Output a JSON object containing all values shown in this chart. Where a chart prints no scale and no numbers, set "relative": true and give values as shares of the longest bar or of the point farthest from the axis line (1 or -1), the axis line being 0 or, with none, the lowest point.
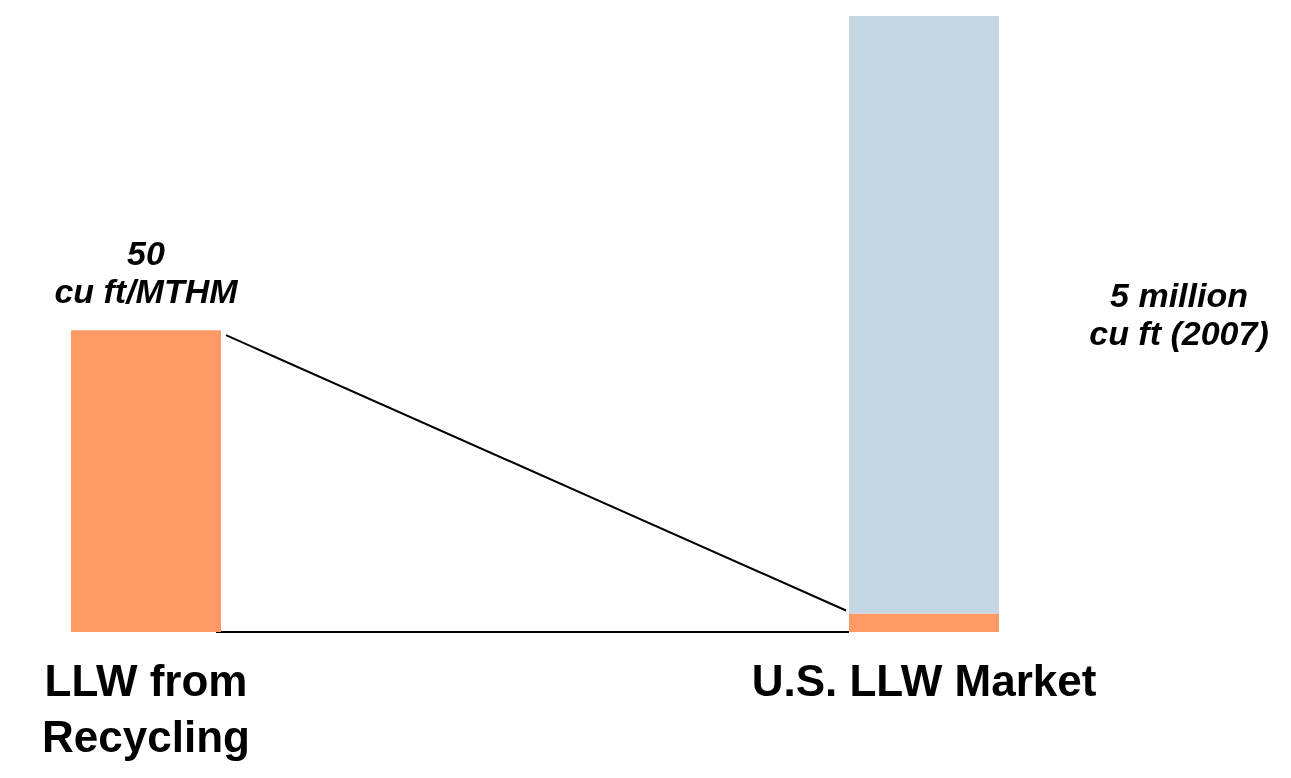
{
  "chart_data": {
    "type": "bar",
    "relative": true,
    "stacked": true,
    "categories": [
      "LLW from\nRecycling",
      "U.S. LLW Market"
    ],
    "series": [
      {
        "color": "#fd9a68",
        "values": [
          0.49,
          0.03
        ]
      },
      {
        "color": "#c5d7e5",
        "values": [
          null,
          0.97
        ]
      }
    ],
    "annotations": [
      "50\ncu ft/MTHM",
      "5 million\ncu ft (2007)"
    ]
  }
}
